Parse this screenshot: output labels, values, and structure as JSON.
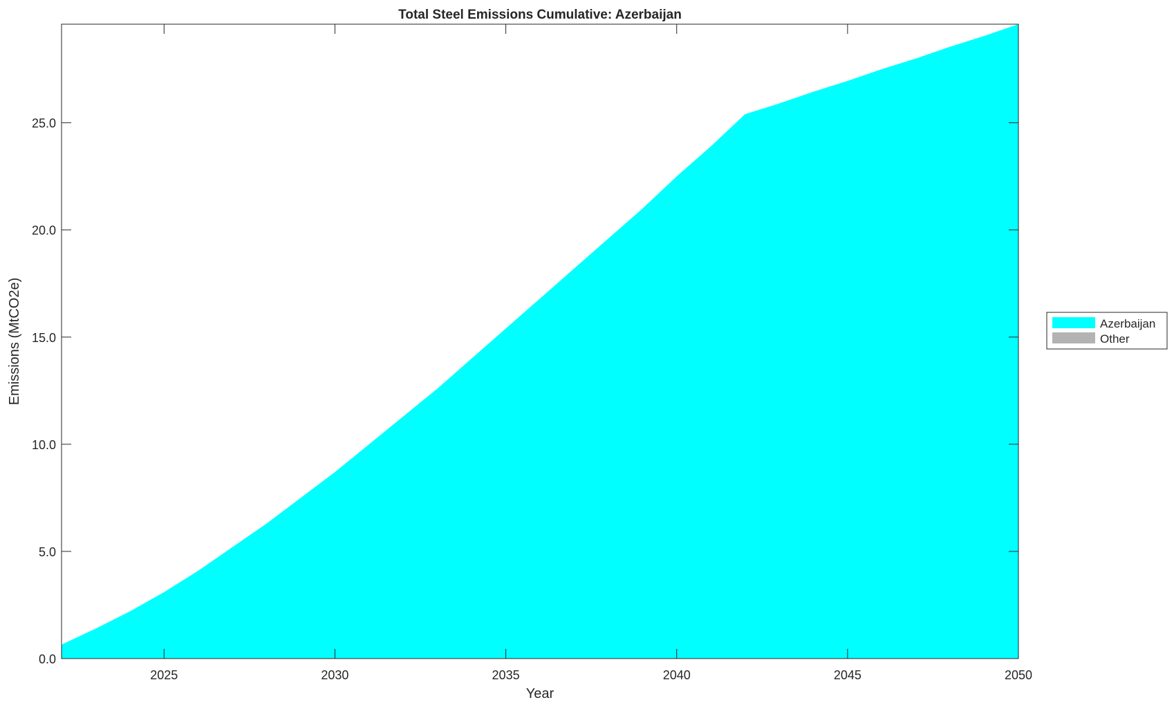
{
  "chart_data": {
    "type": "area",
    "stacked": true,
    "title": "Total Steel Emissions Cumulative: Azerbaijan",
    "xlabel": "Year",
    "ylabel": "Emissions (MtCO2e)",
    "xlim": [
      2022,
      2050
    ],
    "ylim": [
      0,
      29.6
    ],
    "xticks": [
      2025,
      2030,
      2035,
      2040,
      2045,
      2050
    ],
    "yticks": [
      "0.0",
      "5.0",
      "10.0",
      "15.0",
      "20.0",
      "25.0"
    ],
    "grid": false,
    "legend_placement": "right",
    "x": [
      2022,
      2023,
      2024,
      2025,
      2026,
      2027,
      2028,
      2029,
      2030,
      2031,
      2032,
      2033,
      2034,
      2035,
      2036,
      2037,
      2038,
      2039,
      2040,
      2041,
      2042,
      2043,
      2044,
      2045,
      2046,
      2047,
      2048,
      2049,
      2050
    ],
    "series": [
      {
        "name": "Azerbaijan",
        "color": "#00ffff",
        "values": [
          0.65,
          1.4,
          2.2,
          3.1,
          4.1,
          5.2,
          6.3,
          7.5,
          8.7,
          10.0,
          11.3,
          12.6,
          14.0,
          15.4,
          16.8,
          18.2,
          19.6,
          21.0,
          22.5,
          23.9,
          25.4,
          25.9,
          26.45,
          26.95,
          27.5,
          28.0,
          28.55,
          29.05,
          29.6
        ]
      },
      {
        "name": "Other",
        "color": "#b3b3b3",
        "values": [
          0,
          0,
          0,
          0,
          0,
          0,
          0,
          0,
          0,
          0,
          0,
          0,
          0,
          0,
          0,
          0,
          0,
          0,
          0,
          0,
          0,
          0,
          0,
          0,
          0,
          0,
          0,
          0,
          0
        ]
      }
    ]
  }
}
